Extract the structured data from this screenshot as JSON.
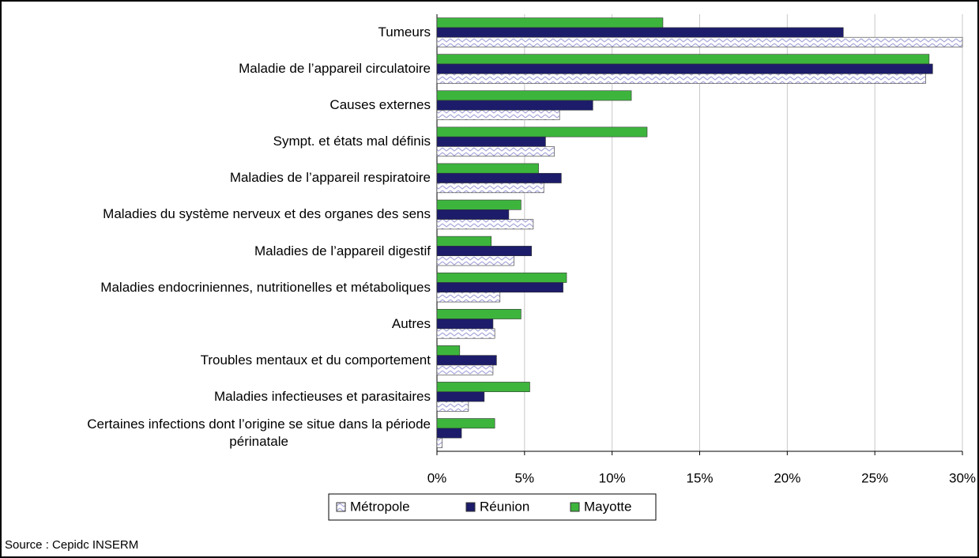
{
  "chart_data": {
    "type": "hbar",
    "categories": [
      "Tumeurs",
      "Maladie de l’appareil circulatoire",
      "Causes externes",
      "Sympt. et états mal définis",
      "Maladies de l’appareil respiratoire",
      "Maladies du système nerveux et des organes des sens",
      "Maladies de l’appareil digestif",
      "Maladies endocriniennes, nutritionelles et métaboliques",
      "Autres",
      "Troubles mentaux et du comportement",
      "Maladies infectieuses et parasitaires",
      "Certaines infections dont l’origine se situe dans la période\npérinatale"
    ],
    "series": [
      {
        "name": "Mayotte",
        "color": "#3db53d",
        "values": [
          12.9,
          28.1,
          11.1,
          12.0,
          5.8,
          4.8,
          3.1,
          7.4,
          4.8,
          1.3,
          5.3,
          3.3
        ]
      },
      {
        "name": "Réunion",
        "color": "#1c1c6b",
        "values": [
          23.2,
          28.3,
          8.9,
          6.2,
          7.1,
          4.1,
          5.4,
          7.2,
          3.2,
          3.4,
          2.7,
          1.4
        ]
      },
      {
        "name": "Métropole",
        "color": "#a8a8dc",
        "pattern": "hatch",
        "values": [
          30.0,
          27.9,
          7.0,
          6.7,
          6.1,
          5.5,
          4.4,
          3.6,
          3.3,
          3.2,
          1.8,
          0.3
        ]
      }
    ],
    "legend_order": [
      "Métropole",
      "Réunion",
      "Mayotte"
    ],
    "xlim": [
      0,
      30
    ],
    "xticks": [
      {
        "value": 0,
        "label": "0%"
      },
      {
        "value": 5,
        "label": "5%"
      },
      {
        "value": 10,
        "label": "10%"
      },
      {
        "value": 15,
        "label": "15%"
      },
      {
        "value": 20,
        "label": "20%"
      },
      {
        "value": 25,
        "label": "25%"
      },
      {
        "value": 30,
        "label": "30%"
      }
    ],
    "grid": true,
    "legend": "bottom",
    "source": "Source : Cepidc INSERM"
  }
}
